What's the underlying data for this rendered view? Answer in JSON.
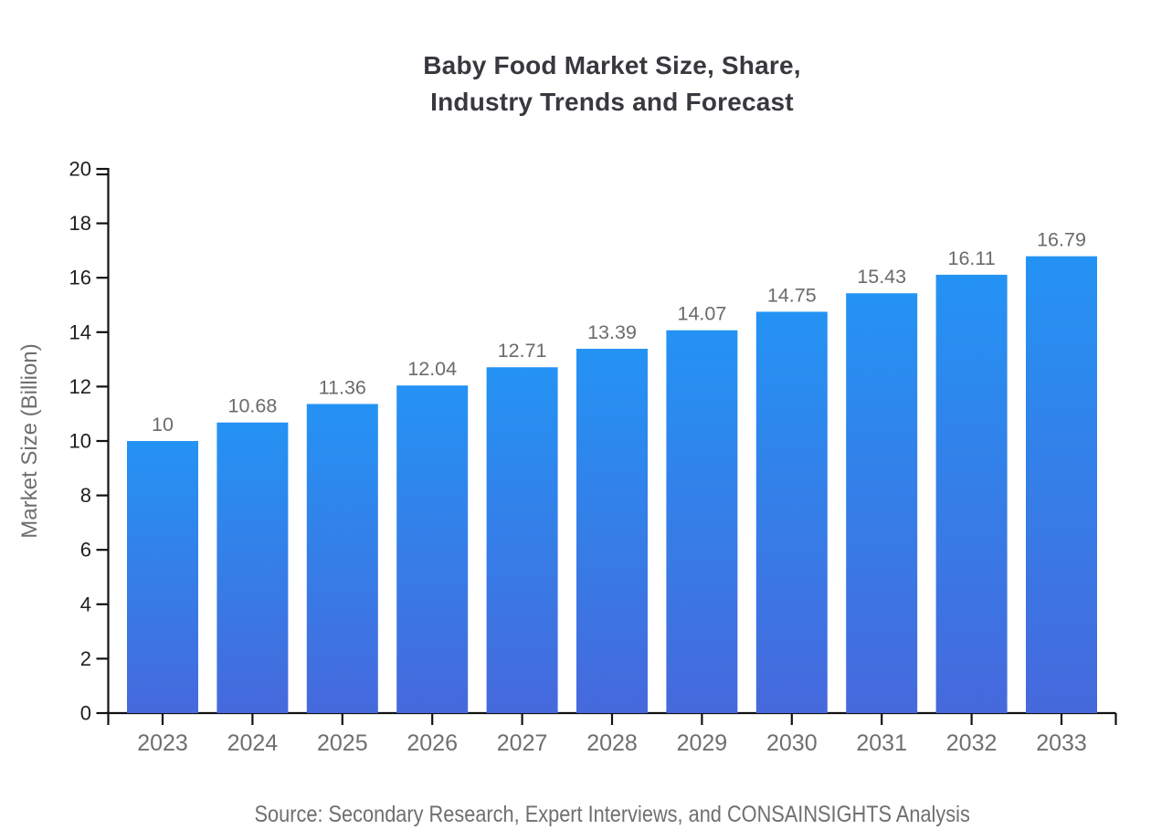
{
  "page": {
    "background_color": "#ffffff"
  },
  "header": {
    "title_line1": "Baby Food Market Size, Share,",
    "title_line2": "Industry Trends and Forecast",
    "title_color": "#37393e"
  },
  "footer": {
    "source_text": "Source: Secondary Research, Expert Interviews, and CONSAINSIGHTS Analysis",
    "source_color": "#6f6f6f"
  },
  "chart_data": {
    "type": "bar",
    "title": "Baby Food Market Size, Share, Industry Trends and Forecast",
    "categories": [
      "2023",
      "2024",
      "2025",
      "2026",
      "2027",
      "2028",
      "2029",
      "2030",
      "2031",
      "2032",
      "2033"
    ],
    "values": [
      10,
      10.68,
      11.36,
      12.04,
      12.71,
      13.39,
      14.07,
      14.75,
      15.43,
      16.11,
      16.79
    ],
    "bar_value_labels": [
      "10",
      "10.68",
      "11.36",
      "12.04",
      "12.71",
      "13.39",
      "14.07",
      "14.75",
      "15.43",
      "16.11",
      "16.79"
    ],
    "xlabel": "",
    "ylabel": "Market Size (Billion)",
    "ylim": [
      0,
      20
    ],
    "ytick_step": 2,
    "ytick_labels": [
      "0",
      "2",
      "4",
      "6",
      "8",
      "10",
      "12",
      "14",
      "16",
      "18",
      "20"
    ],
    "grid": false,
    "legend": false,
    "styles": {
      "bar_gradient_top": "#2493f4",
      "bar_gradient_bottom": "#4669dc",
      "axis_color": "#111111",
      "ytick_label_color": "#202020",
      "xtick_label_color": "#6f6f6f",
      "value_label_color": "#6b6b6b",
      "ylabel_color": "#6f6f6f"
    }
  }
}
